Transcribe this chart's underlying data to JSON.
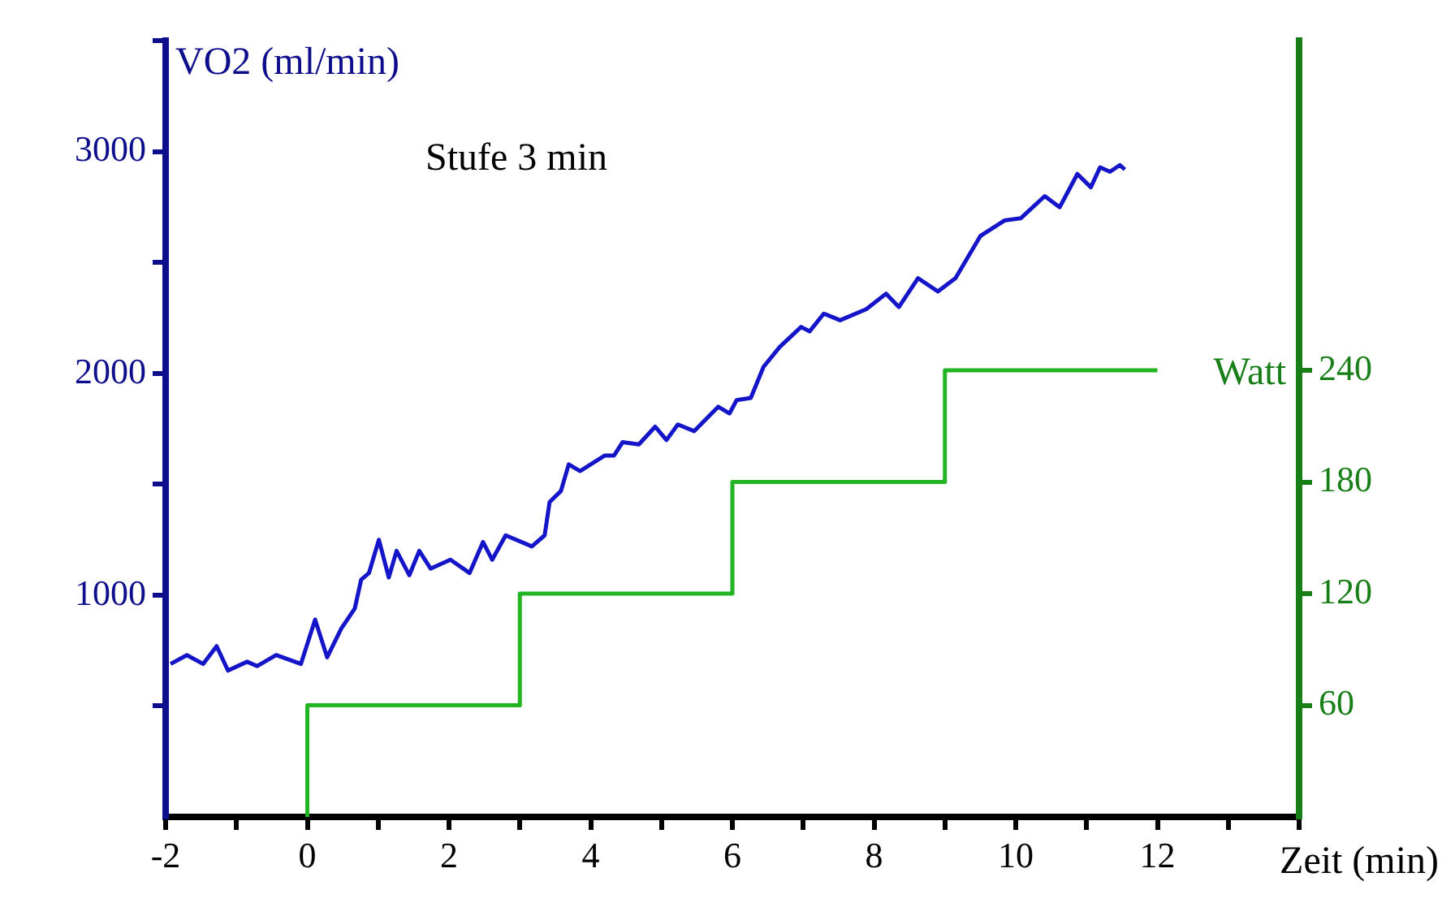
{
  "chart_data": {
    "type": "line",
    "annotations": [
      "Stufe 3 min"
    ],
    "xlabel": "Zeit (min)",
    "ylabel": "VO2 (ml/min)",
    "y2label": "Watt",
    "xlim": [
      -2,
      14
    ],
    "xticks": [
      -2,
      {
        "value": -1,
        "label": null
      },
      0,
      {
        "value": 1,
        "label": null
      },
      2,
      {
        "value": 3,
        "label": null
      },
      4,
      {
        "value": 5,
        "label": null
      },
      6,
      {
        "value": 7,
        "label": null
      },
      8,
      {
        "value": 9,
        "label": null
      },
      10,
      {
        "value": 11,
        "label": null
      },
      12,
      {
        "value": 13,
        "label": null
      },
      {
        "value": 14,
        "label": null
      }
    ],
    "ylim": [
      0,
      3500
    ],
    "yticks": [
      {
        "value": 500,
        "label": null
      },
      1000,
      {
        "value": 1500,
        "label": null
      },
      2000,
      {
        "value": 2500,
        "label": null
      },
      3000,
      {
        "value": 3500,
        "label": null
      }
    ],
    "y2lim": [
      0,
      417
    ],
    "y2ticks": [
      60,
      120,
      180,
      240
    ],
    "grid": false,
    "legend": false,
    "marker": "none",
    "line_style": "solid",
    "series": [
      {
        "type": "line",
        "color": "#1414c8",
        "x": [
          -1.93,
          -1.7,
          -1.47,
          -1.28,
          -1.12,
          -0.85,
          -0.71,
          -0.44,
          -0.09,
          0.11,
          0.28,
          0.48,
          0.67,
          0.76,
          0.87,
          1.01,
          1.15,
          1.26,
          1.44,
          1.58,
          1.74,
          2.02,
          2.29,
          2.48,
          2.61,
          2.8,
          3.17,
          3.35,
          3.42,
          3.58,
          3.69,
          3.85,
          4.2,
          4.33,
          4.45,
          4.68,
          4.91,
          5.07,
          5.23,
          5.46,
          5.8,
          5.96,
          6.06,
          6.26,
          6.44,
          6.67,
          6.97,
          7.09,
          7.29,
          7.52,
          7.89,
          8.17,
          8.35,
          8.62,
          8.9,
          9.15,
          9.5,
          9.84,
          10.07,
          10.41,
          10.62,
          10.87,
          11.06,
          11.19,
          11.33,
          11.47,
          11.54
        ],
        "values": [
          690,
          730,
          690,
          770,
          660,
          700,
          680,
          730,
          690,
          890,
          720,
          850,
          940,
          1070,
          1100,
          1250,
          1080,
          1200,
          1090,
          1200,
          1120,
          1160,
          1100,
          1240,
          1160,
          1270,
          1220,
          1270,
          1420,
          1470,
          1590,
          1560,
          1630,
          1630,
          1690,
          1680,
          1760,
          1700,
          1770,
          1740,
          1850,
          1820,
          1880,
          1890,
          2030,
          2120,
          2210,
          2190,
          2270,
          2240,
          2290,
          2360,
          2300,
          2430,
          2370,
          2430,
          2620,
          2690,
          2700,
          2800,
          2750,
          2900,
          2840,
          2930,
          2910,
          2940,
          2920
        ]
      },
      {
        "type": "step",
        "axis": "y2",
        "color": "#22b422",
        "x": [
          0,
          0,
          3,
          6,
          9,
          12
        ],
        "values": [
          0,
          60,
          120,
          180,
          240,
          240
        ]
      }
    ]
  }
}
